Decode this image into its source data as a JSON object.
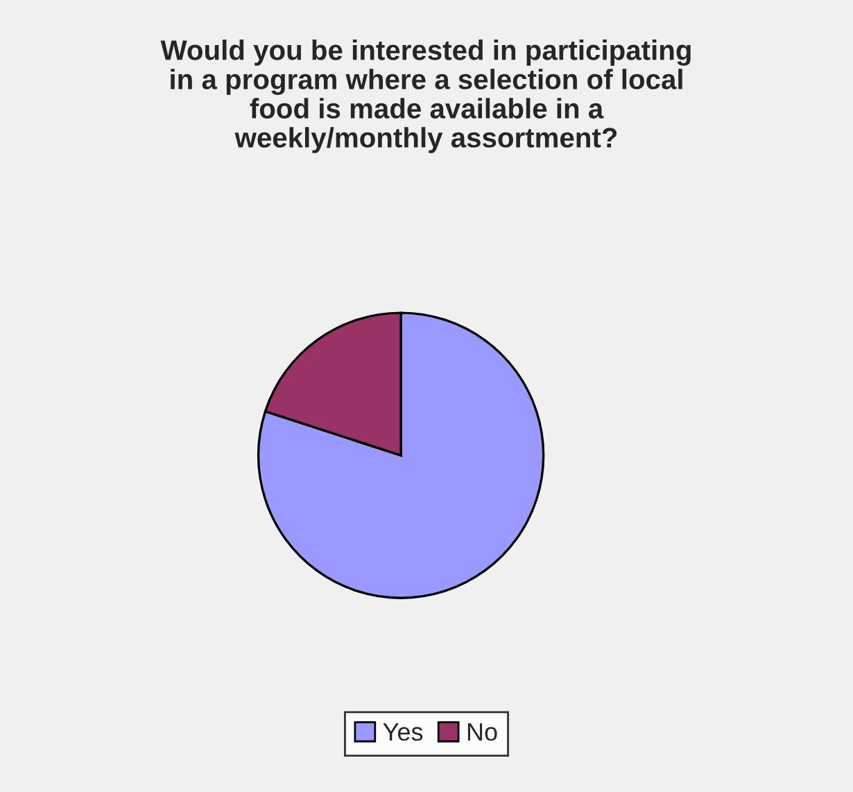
{
  "chart_data": {
    "type": "pie",
    "title": "Would you be interested in participating\nin a program where a selection of local\nfood is made available in a\nweekly/monthly assortment?",
    "categories": [
      "Yes",
      "No"
    ],
    "values": [
      80,
      20
    ],
    "colors": [
      "#9999ff",
      "#993366"
    ],
    "legend": "bottom"
  }
}
